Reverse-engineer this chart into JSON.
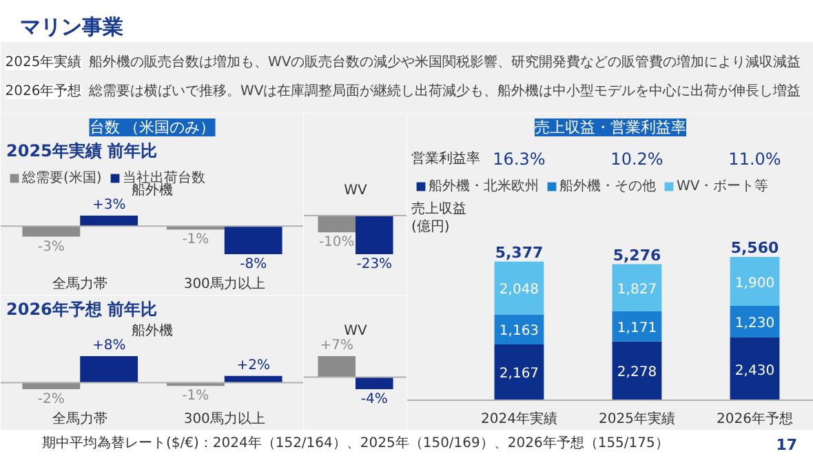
{
  "chart_data": [
    {
      "type": "other",
      "title": "マリン事業",
      "annotations": [
        "2025年実績",
        "船外機の販売台数は増加も、WVの販売台数の減少や米国関税影響、研究開発費などの販管費の増加により減収減益",
        "2026年予想",
        "総需要は横ばいで推移。WVは在庫調整局面が継続し出荷減少も、船外機は中小型モデルを中心に出荷が伸長し増益"
      ]
    },
    {
      "type": "bar",
      "title": "台数 （米国のみ）",
      "subtitle": "2025年実績 前年比",
      "annotations": [
        "船外機"
      ],
      "categories": [
        "全馬力帯",
        "300馬力以上"
      ],
      "legend": "top",
      "series": [
        {
          "name": "総需要(米国)",
          "color": "#8c8c8c",
          "values": [
            -3,
            -1
          ],
          "value_labels": [
            "-3%",
            "-1%"
          ]
        },
        {
          "name": "当社出荷台数",
          "color": "#0d2a8a",
          "values": [
            3,
            -8
          ],
          "value_labels": [
            "+3%",
            "-8%"
          ]
        }
      ]
    },
    {
      "type": "bar",
      "annotations": [
        "WV"
      ],
      "categories": [
        null
      ],
      "series": [
        {
          "color": "#8c8c8c",
          "values": [
            -10
          ],
          "value_labels": [
            "-10%"
          ]
        },
        {
          "color": "#0d2a8a",
          "values": [
            -23
          ],
          "value_labels": [
            "-23%"
          ]
        }
      ]
    },
    {
      "type": "bar",
      "subtitle": "2026年予想 前年比",
      "annotations": [
        "船外機"
      ],
      "categories": [
        "全馬力帯",
        "300馬力以上"
      ],
      "series": [
        {
          "color": "#8c8c8c",
          "values": [
            -2,
            -1
          ],
          "value_labels": [
            "-2%",
            "-1%"
          ]
        },
        {
          "color": "#0d2a8a",
          "values": [
            8,
            2
          ],
          "value_labels": [
            "+8%",
            "+2%"
          ]
        }
      ]
    },
    {
      "type": "bar",
      "annotations": [
        "WV"
      ],
      "categories": [
        null
      ],
      "series": [
        {
          "color": "#8c8c8c",
          "values": [
            7
          ],
          "value_labels": [
            "+7%"
          ]
        },
        {
          "color": "#0d2a8a",
          "values": [
            -4
          ],
          "value_labels": [
            "-4%"
          ]
        }
      ]
    },
    {
      "type": "bar",
      "title": "売上収益・営業利益率",
      "ylabel": "売上収益\n(億円)",
      "stacked": true,
      "legend": "top",
      "categories": [
        "2024年実績",
        "2025年実績",
        "2026年予想"
      ],
      "annotations": [
        "営業利益率",
        "16.3%",
        "10.2%",
        "11.0%"
      ],
      "totals": [
        "5,377",
        "5,276",
        "5,560"
      ],
      "series": [
        {
          "name": "船外機・北米欧州",
          "color": "#0b2f8a",
          "values": [
            2167,
            2278,
            2430
          ],
          "value_labels": [
            "2,167",
            "2,278",
            "2,430"
          ]
        },
        {
          "name": "船外機・その他",
          "color": "#1a7fd0",
          "values": [
            1163,
            1171,
            1230
          ],
          "value_labels": [
            "1,163",
            "1,171",
            "1,230"
          ]
        },
        {
          "name": "WV・ボート等",
          "color": "#5bc0eb",
          "values": [
            2048,
            1827,
            1900
          ],
          "value_labels": [
            "2,048",
            "1,827",
            "1,900"
          ]
        }
      ]
    },
    {
      "type": "other",
      "annotations": [
        "期中平均為替レート($/€)：2024年（152/164）、2025年（150/169）、2026年予想（155/175）",
        "17"
      ]
    }
  ]
}
